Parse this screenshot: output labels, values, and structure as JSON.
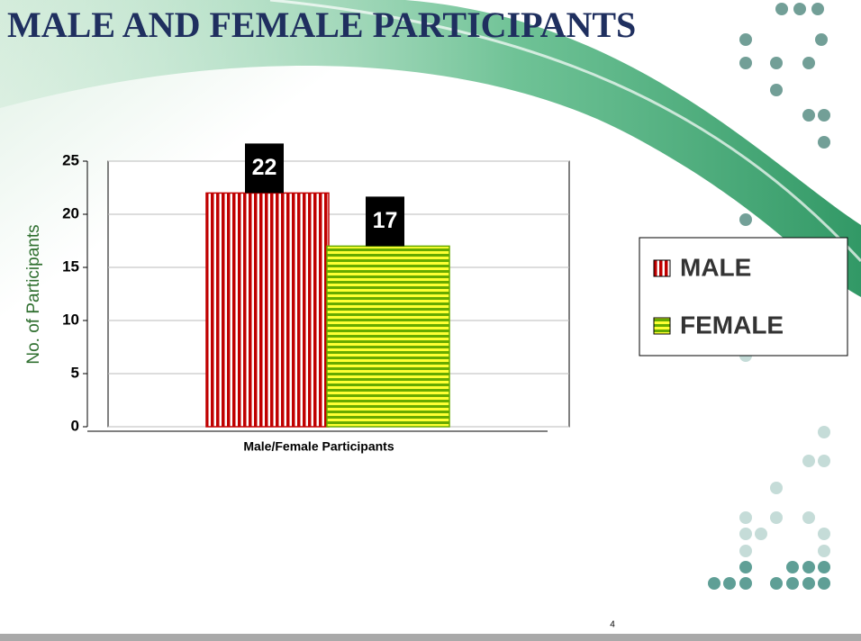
{
  "chart_data": {
    "type": "bar",
    "title": "MALE AND FEMALE PARTICIPANTS",
    "x_label": "Male/Female Participants",
    "y_label": "No. of Participants",
    "categories": [
      null
    ],
    "series": [
      {
        "name": "MALE",
        "color": "#c00000",
        "values": [
          22
        ]
      },
      {
        "name": "FEMALE",
        "color": "#66aa00",
        "values": [
          17
        ]
      }
    ],
    "ylim": [
      0,
      25
    ],
    "yticks": [
      0,
      5,
      10,
      15,
      20,
      25
    ],
    "grid": true,
    "legend": "right"
  },
  "slide_number": 4
}
